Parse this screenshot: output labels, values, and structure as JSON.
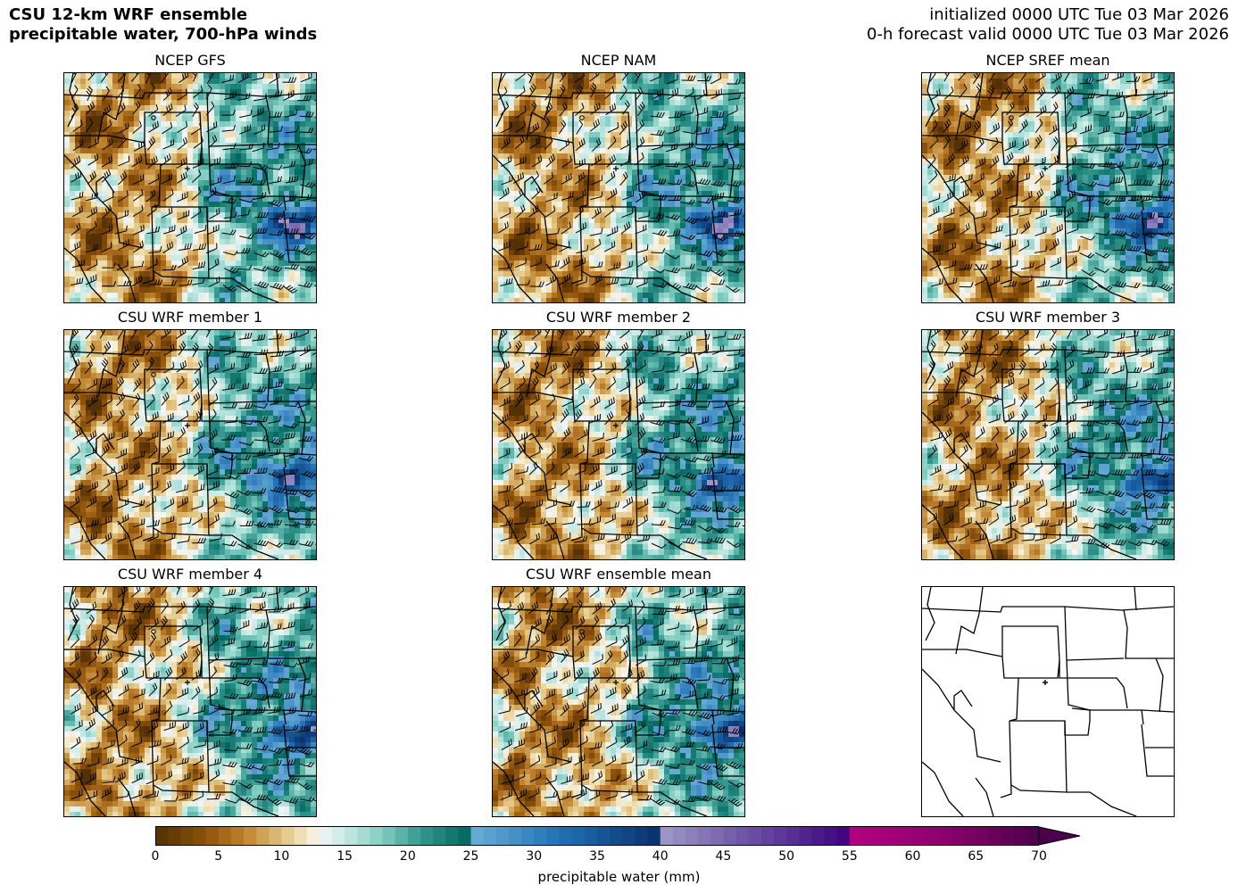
{
  "header": {
    "title_line1": "CSU 12-km WRF ensemble",
    "title_line2": "precipitable water, 700-hPa winds",
    "init_line": "initialized 0000 UTC Tue 03 Mar 2026",
    "valid_line": "0-h forecast valid 0000 UTC Tue 03 Mar 2026"
  },
  "panels": [
    {
      "title": "NCEP GFS",
      "type": "field"
    },
    {
      "title": "NCEP NAM",
      "type": "field"
    },
    {
      "title": "NCEP SREF mean",
      "type": "field"
    },
    {
      "title": "CSU WRF member 1",
      "type": "field"
    },
    {
      "title": "CSU WRF member 2",
      "type": "field"
    },
    {
      "title": "CSU WRF member 3",
      "type": "field"
    },
    {
      "title": "CSU WRF member 4",
      "type": "field"
    },
    {
      "title": "CSU WRF ensemble mean",
      "type": "field"
    },
    {
      "title": "",
      "type": "outline"
    }
  ],
  "colorbar": {
    "label": "precipitable water (mm)",
    "ticks": [
      "0",
      "5",
      "10",
      "15",
      "20",
      "25",
      "30",
      "35",
      "40",
      "45",
      "50",
      "55",
      "60",
      "65",
      "70"
    ],
    "min": 0,
    "max": 70,
    "extend": "max",
    "stops": [
      {
        "v": 0,
        "c": "#543005"
      },
      {
        "v": 4,
        "c": "#8c510a"
      },
      {
        "v": 7,
        "c": "#bf812d"
      },
      {
        "v": 10,
        "c": "#dfc27d"
      },
      {
        "v": 12,
        "c": "#f6e8c3"
      },
      {
        "v": 13,
        "c": "#f5f5f5"
      },
      {
        "v": 15,
        "c": "#c7eae5"
      },
      {
        "v": 18,
        "c": "#80cdc1"
      },
      {
        "v": 21,
        "c": "#35978f"
      },
      {
        "v": 25,
        "c": "#01665e"
      },
      {
        "v": 25.01,
        "c": "#6baed6"
      },
      {
        "v": 32,
        "c": "#2171b5"
      },
      {
        "v": 40,
        "c": "#08306b"
      },
      {
        "v": 40.01,
        "c": "#9e9ac8"
      },
      {
        "v": 47,
        "c": "#6a51a3"
      },
      {
        "v": 55,
        "c": "#3f007d"
      },
      {
        "v": 55.01,
        "c": "#b5007f"
      },
      {
        "v": 62,
        "c": "#8e0170"
      },
      {
        "v": 70,
        "c": "#4d004b"
      }
    ]
  }
}
